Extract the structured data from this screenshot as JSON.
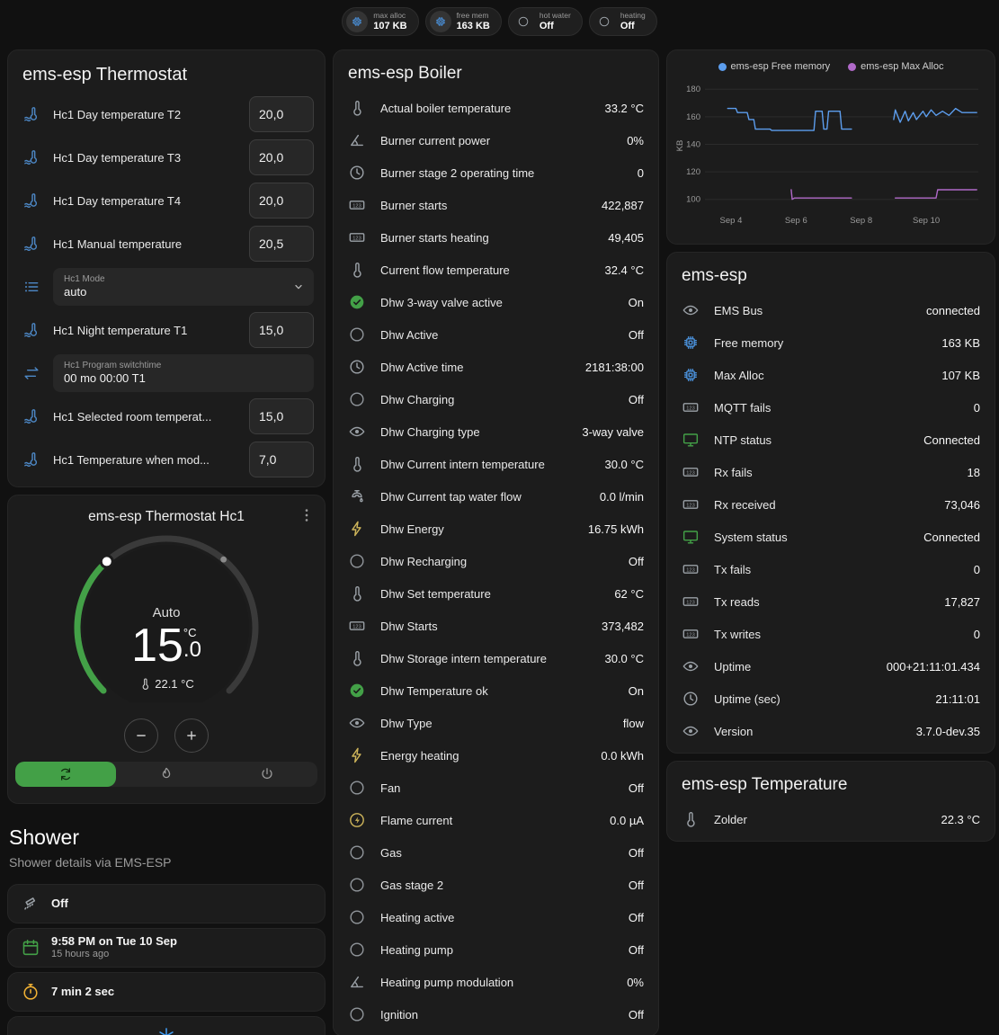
{
  "colors": {
    "background": "#111111",
    "card": "#1c1c1c",
    "accent_green": "#43a047",
    "entity_blue": "#4d88c6",
    "icon_grey": "#9aa0a6",
    "amber": "#cdb45a",
    "free_memory_line": "#5c9ded",
    "max_alloc_line": "#b069c8"
  },
  "badges": [
    {
      "icon": "chip",
      "icon_color": "#4a90d9",
      "icon_bg": true,
      "label": "max alloc",
      "value": "107 KB"
    },
    {
      "icon": "chip",
      "icon_color": "#4a90d9",
      "icon_bg": true,
      "label": "free mem",
      "value": "163 KB"
    },
    {
      "icon": "circle-outline",
      "icon_color": "#9aa0a6",
      "icon_bg": false,
      "label": "hot water",
      "value": "Off"
    },
    {
      "icon": "circle-outline",
      "icon_color": "#9aa0a6",
      "icon_bg": false,
      "label": "heating",
      "value": "Off"
    }
  ],
  "thermostat_card": {
    "title": "ems-esp Thermostat",
    "rows": [
      {
        "type": "number",
        "icon": "thermometer-water",
        "icon_color": "#4d88c6",
        "label": "Hc1 Day temperature T2",
        "value": "20,0"
      },
      {
        "type": "number",
        "icon": "thermometer-water",
        "icon_color": "#4d88c6",
        "label": "Hc1 Day temperature T3",
        "value": "20,0"
      },
      {
        "type": "number",
        "icon": "thermometer-water",
        "icon_color": "#4d88c6",
        "label": "Hc1 Day temperature T4",
        "value": "20,0"
      },
      {
        "type": "number",
        "icon": "thermometer-water",
        "icon_color": "#4d88c6",
        "label": "Hc1 Manual temperature",
        "value": "20,5"
      },
      {
        "type": "select",
        "icon": "list",
        "icon_color": "#4d88c6",
        "box_label": "Hc1 Mode",
        "value": "auto"
      },
      {
        "type": "number",
        "icon": "thermometer-water",
        "icon_color": "#4d88c6",
        "label": "Hc1 Night temperature T1",
        "value": "15,0"
      },
      {
        "type": "text",
        "icon": "swap",
        "icon_color": "#4d88c6",
        "box_label": "Hc1 Program switchtime",
        "value": "00 mo 00:00 T1"
      },
      {
        "type": "number",
        "icon": "thermometer-water",
        "icon_color": "#4d88c6",
        "label": "Hc1 Selected room temperat...",
        "value": "15,0"
      },
      {
        "type": "number",
        "icon": "thermometer-water",
        "icon_color": "#4d88c6",
        "label": "Hc1 Temperature when mod...",
        "value": "7,0"
      }
    ]
  },
  "hc1_card": {
    "title": "ems-esp Thermostat Hc1",
    "mode_label": "Auto",
    "target_int": "15",
    "target_dec": ".0",
    "target_unit": "°C",
    "current_temp": "22.1 °C",
    "modes": [
      {
        "icon": "auto",
        "active": true
      },
      {
        "icon": "fire",
        "active": false
      },
      {
        "icon": "power",
        "active": false
      }
    ]
  },
  "shower": {
    "title": "Shower",
    "subtitle": "Shower details via EMS-ESP",
    "cards": [
      {
        "icon": "shower",
        "icon_color": "#9aa0a6",
        "primary": "Off",
        "secondary": ""
      },
      {
        "icon": "calendar",
        "icon_color": "#43a047",
        "primary": "9:58 PM on Tue 10 Sep",
        "secondary": "15 hours ago"
      },
      {
        "icon": "timer",
        "icon_color": "#efb034",
        "primary": "7 min 2 sec",
        "secondary": ""
      },
      {
        "icon": "snowflake",
        "icon_color": "#3f9af0",
        "primary": "",
        "secondary": ""
      }
    ]
  },
  "boiler_card": {
    "title": "ems-esp Boiler",
    "rows": [
      {
        "icon": "thermometer",
        "icon_color": "#9aa0a6",
        "label": "Actual boiler temperature",
        "value": "33.2 °C"
      },
      {
        "icon": "angle",
        "icon_color": "#9aa0a6",
        "label": "Burner current power",
        "value": "0%"
      },
      {
        "icon": "clock",
        "icon_color": "#9aa0a6",
        "label": "Burner stage 2 operating time",
        "value": "0"
      },
      {
        "icon": "counter",
        "icon_color": "#9aa0a6",
        "label": "Burner starts",
        "value": "422,887"
      },
      {
        "icon": "counter",
        "icon_color": "#9aa0a6",
        "label": "Burner starts heating",
        "value": "49,405"
      },
      {
        "icon": "thermometer",
        "icon_color": "#9aa0a6",
        "label": "Current flow temperature",
        "value": "32.4 °C"
      },
      {
        "icon": "check-circle",
        "icon_color": "#43a047",
        "label": "Dhw 3-way valve active",
        "value": "On"
      },
      {
        "icon": "circle-outline",
        "icon_color": "#8f9499",
        "label": "Dhw Active",
        "value": "Off"
      },
      {
        "icon": "clock",
        "icon_color": "#9aa0a6",
        "label": "Dhw Active time",
        "value": "2181:38:00"
      },
      {
        "icon": "circle-outline",
        "icon_color": "#8f9499",
        "label": "Dhw Charging",
        "value": "Off"
      },
      {
        "icon": "eye",
        "icon_color": "#9aa0a6",
        "label": "Dhw Charging type",
        "value": "3-way valve"
      },
      {
        "icon": "thermometer",
        "icon_color": "#9aa0a6",
        "label": "Dhw Current intern temperature",
        "value": "30.0 °C"
      },
      {
        "icon": "faucet",
        "icon_color": "#9aa0a6",
        "label": "Dhw Current tap water flow",
        "value": "0.0 l/min"
      },
      {
        "icon": "flash",
        "icon_color": "#cdb45a",
        "label": "Dhw Energy",
        "value": "16.75 kWh"
      },
      {
        "icon": "circle-outline",
        "icon_color": "#8f9499",
        "label": "Dhw Recharging",
        "value": "Off"
      },
      {
        "icon": "thermometer",
        "icon_color": "#9aa0a6",
        "label": "Dhw Set temperature",
        "value": "62 °C"
      },
      {
        "icon": "counter",
        "icon_color": "#9aa0a6",
        "label": "Dhw Starts",
        "value": "373,482"
      },
      {
        "icon": "thermometer",
        "icon_color": "#9aa0a6",
        "label": "Dhw Storage intern temperature",
        "value": "30.0 °C"
      },
      {
        "icon": "check-circle",
        "icon_color": "#43a047",
        "label": "Dhw Temperature ok",
        "value": "On"
      },
      {
        "icon": "eye",
        "icon_color": "#9aa0a6",
        "label": "Dhw Type",
        "value": "flow"
      },
      {
        "icon": "flash",
        "icon_color": "#cdb45a",
        "label": "Energy heating",
        "value": "0.0 kWh"
      },
      {
        "icon": "circle-outline",
        "icon_color": "#8f9499",
        "label": "Fan",
        "value": "Off"
      },
      {
        "icon": "flash-circle",
        "icon_color": "#cdb45a",
        "label": "Flame current",
        "value": "0.0 µA"
      },
      {
        "icon": "circle-outline",
        "icon_color": "#8f9499",
        "label": "Gas",
        "value": "Off"
      },
      {
        "icon": "circle-outline",
        "icon_color": "#8f9499",
        "label": "Gas stage 2",
        "value": "Off"
      },
      {
        "icon": "circle-outline",
        "icon_color": "#8f9499",
        "label": "Heating active",
        "value": "Off"
      },
      {
        "icon": "circle-outline",
        "icon_color": "#8f9499",
        "label": "Heating pump",
        "value": "Off"
      },
      {
        "icon": "angle",
        "icon_color": "#9aa0a6",
        "label": "Heating pump modulation",
        "value": "0%"
      },
      {
        "icon": "circle-outline",
        "icon_color": "#8f9499",
        "label": "Ignition",
        "value": "Off"
      }
    ]
  },
  "ems_card": {
    "title": "ems-esp",
    "rows": [
      {
        "icon": "eye",
        "icon_color": "#9aa0a6",
        "label": "EMS Bus",
        "value": "connected"
      },
      {
        "icon": "chip",
        "icon_color": "#4a90d9",
        "label": "Free memory",
        "value": "163 KB"
      },
      {
        "icon": "chip",
        "icon_color": "#4a90d9",
        "label": "Max Alloc",
        "value": "107 KB"
      },
      {
        "icon": "counter",
        "icon_color": "#9aa0a6",
        "label": "MQTT fails",
        "value": "0"
      },
      {
        "icon": "monitor",
        "icon_color": "#43a047",
        "label": "NTP status",
        "value": "Connected"
      },
      {
        "icon": "counter",
        "icon_color": "#9aa0a6",
        "label": "Rx fails",
        "value": "18"
      },
      {
        "icon": "counter",
        "icon_color": "#9aa0a6",
        "label": "Rx received",
        "value": "73,046"
      },
      {
        "icon": "monitor",
        "icon_color": "#43a047",
        "label": "System status",
        "value": "Connected"
      },
      {
        "icon": "counter",
        "icon_color": "#9aa0a6",
        "label": "Tx fails",
        "value": "0"
      },
      {
        "icon": "counter",
        "icon_color": "#9aa0a6",
        "label": "Tx reads",
        "value": "17,827"
      },
      {
        "icon": "counter",
        "icon_color": "#9aa0a6",
        "label": "Tx writes",
        "value": "0"
      },
      {
        "icon": "eye",
        "icon_color": "#9aa0a6",
        "label": "Uptime",
        "value": "000+21:11:01.434"
      },
      {
        "icon": "clock",
        "icon_color": "#9aa0a6",
        "label": "Uptime (sec)",
        "value": "21:11:01"
      },
      {
        "icon": "eye",
        "icon_color": "#9aa0a6",
        "label": "Version",
        "value": "3.7.0-dev.35"
      }
    ]
  },
  "temperature_card": {
    "title": "ems-esp Temperature",
    "rows": [
      {
        "icon": "thermometer",
        "icon_color": "#9aa0a6",
        "label": "Zolder",
        "value": "22.3 °C"
      }
    ]
  },
  "chart_data": {
    "type": "line",
    "title": "",
    "xlabel": "",
    "ylabel": "KB",
    "ylim": [
      92,
      186
    ],
    "yticks": [
      100,
      120,
      140,
      160,
      180
    ],
    "xlim": [
      3.2,
      11.6
    ],
    "xticks": [
      {
        "label": "Sep 4",
        "x": 4
      },
      {
        "label": "Sep 6",
        "x": 6
      },
      {
        "label": "Sep 8",
        "x": 8
      },
      {
        "label": "Sep 10",
        "x": 10
      }
    ],
    "grid": true,
    "legend_position": "top",
    "series": [
      {
        "name": "ems-esp Free memory",
        "color": "#5c9ded",
        "unit": "KB",
        "segments": [
          [
            [
              3.9,
              166
            ],
            [
              4.15,
              166
            ],
            [
              4.2,
              163
            ],
            [
              4.5,
              163
            ],
            [
              4.55,
              158
            ],
            [
              4.7,
              158
            ],
            [
              4.75,
              151
            ],
            [
              5.2,
              151
            ],
            [
              5.25,
              150
            ],
            [
              6.55,
              150
            ],
            [
              6.6,
              164
            ],
            [
              6.8,
              164
            ],
            [
              6.85,
              151
            ],
            [
              6.95,
              151
            ],
            [
              7.0,
              164
            ],
            [
              7.35,
              164
            ],
            [
              7.4,
              151
            ],
            [
              7.7,
              151
            ]
          ],
          [
            [
              9.0,
              158
            ],
            [
              9.05,
              165
            ],
            [
              9.2,
              156
            ],
            [
              9.35,
              164
            ],
            [
              9.45,
              157
            ],
            [
              9.6,
              163
            ],
            [
              9.7,
              158
            ],
            [
              9.9,
              164
            ],
            [
              10.0,
              160
            ],
            [
              10.15,
              165
            ],
            [
              10.3,
              161
            ],
            [
              10.5,
              164
            ],
            [
              10.7,
              161
            ],
            [
              10.9,
              166
            ],
            [
              11.1,
              163
            ],
            [
              11.55,
              163
            ]
          ]
        ]
      },
      {
        "name": "ems-esp Max Alloc",
        "color": "#b069c8",
        "unit": "KB",
        "segments": [
          [
            [
              5.85,
              107
            ],
            [
              5.88,
              100
            ],
            [
              5.95,
              101
            ],
            [
              7.7,
              101
            ]
          ],
          [
            [
              9.05,
              101
            ],
            [
              10.3,
              101
            ],
            [
              10.35,
              107
            ],
            [
              11.55,
              107
            ]
          ]
        ]
      }
    ]
  }
}
